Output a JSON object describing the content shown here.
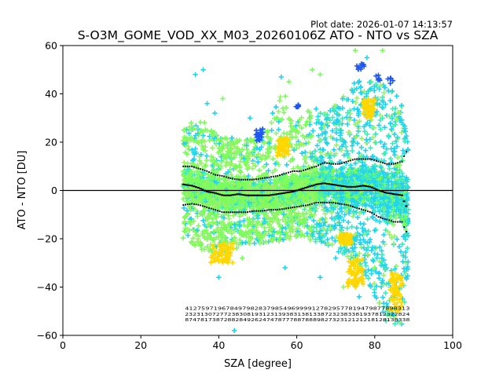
{
  "plot_date": "Plot date: 2026-01-07 14:13:57",
  "chart_data": {
    "type": "scatter",
    "title": "S-O3M_GOME_VOD_XX_M03_20260106Z ATO - NTO vs SZA",
    "xlabel": "SZA [degree]",
    "ylabel": "ATO - NTO [DU]",
    "xlim": [
      0,
      100
    ],
    "ylim": [
      -60,
      60
    ],
    "xticks": [
      0,
      20,
      40,
      60,
      80,
      100
    ],
    "yticks": [
      -60,
      -40,
      -20,
      0,
      20,
      40,
      60
    ],
    "grid": false,
    "legend": "none",
    "zero_line": 0,
    "colors": {
      "lime": "#7CFC5A",
      "green": "#9AF06A",
      "cyan": "#22D3EE",
      "teal": "#3CEBB8",
      "yellow": "#FFD700",
      "blue": "#1E56F0",
      "mean": "#000000"
    },
    "sza": [
      31,
      33,
      35,
      37,
      39,
      41,
      43,
      45,
      47,
      49,
      51,
      53,
      55,
      57,
      59,
      61,
      63,
      65,
      67,
      69,
      71,
      73,
      75,
      77,
      79,
      81,
      83,
      85,
      87,
      88
    ],
    "mean": [
      2.5,
      2,
      1,
      -0.5,
      -1,
      -2,
      -2,
      -1.5,
      -2,
      -2,
      -2,
      -2,
      -1.5,
      -1,
      -0.5,
      0.5,
      1.5,
      2.5,
      3,
      2.5,
      2,
      1.5,
      1.5,
      2,
      1.5,
      0,
      -1,
      -1.5,
      -2,
      -6.5
    ],
    "upper": [
      10,
      10,
      9,
      8,
      6.5,
      6,
      5,
      4.5,
      4.5,
      4.5,
      5,
      5.5,
      6,
      7,
      8,
      8,
      9,
      10,
      11.5,
      11,
      11,
      12,
      13,
      13,
      13,
      12,
      11,
      11,
      12,
      16
    ],
    "lower": [
      -6,
      -5.5,
      -6,
      -7,
      -8,
      -9,
      -9,
      -9,
      -9,
      -8.5,
      -8.5,
      -8,
      -8,
      -7.5,
      -7,
      -6.5,
      -6,
      -5,
      -5,
      -5,
      -5.5,
      -6,
      -7,
      -8,
      -9,
      -11,
      -12,
      -13,
      -13,
      -17
    ],
    "spread_hi": [
      26,
      30,
      30,
      28,
      24,
      22,
      22,
      22,
      22,
      22,
      24,
      28,
      38,
      40,
      30,
      30,
      34,
      34,
      32,
      34,
      38,
      42,
      45,
      47,
      46,
      44,
      44,
      42,
      38,
      24
    ],
    "spread_lo": [
      -20,
      -22,
      -24,
      -26,
      -28,
      -26,
      -24,
      -24,
      -22,
      -22,
      -22,
      -22,
      -22,
      -20,
      -20,
      -20,
      -20,
      -22,
      -22,
      -24,
      -26,
      -28,
      -30,
      -34,
      -40,
      -50,
      -55,
      -58,
      -58,
      -40
    ],
    "yellow_clusters": [
      {
        "x": [
          38,
          44
        ],
        "y": [
          -30,
          -22
        ]
      },
      {
        "x": [
          55,
          58
        ],
        "y": [
          14,
          22
        ]
      },
      {
        "x": [
          71,
          74
        ],
        "y": [
          -22,
          -18
        ]
      },
      {
        "x": [
          73,
          77
        ],
        "y": [
          -40,
          -28
        ]
      },
      {
        "x": [
          77,
          80
        ],
        "y": [
          30,
          38
        ]
      },
      {
        "x": [
          84,
          87
        ],
        "y": [
          -50,
          -34
        ]
      }
    ],
    "blue_points": [
      {
        "x": 50,
        "y": 23
      },
      {
        "x": 51,
        "y": 24
      },
      {
        "x": 50.5,
        "y": 21
      },
      {
        "x": 77,
        "y": 52
      },
      {
        "x": 76,
        "y": 51
      },
      {
        "x": 81,
        "y": 47
      },
      {
        "x": 84,
        "y": 46
      },
      {
        "x": 60,
        "y": 35
      }
    ],
    "count_rows": [
      "4127597196784979828379854969999127829577819479877898313",
      "2323130727723830819312313938313813387232383381937812322824",
      "8747817387288284926247478777887888982732312121218128138338"
    ]
  }
}
